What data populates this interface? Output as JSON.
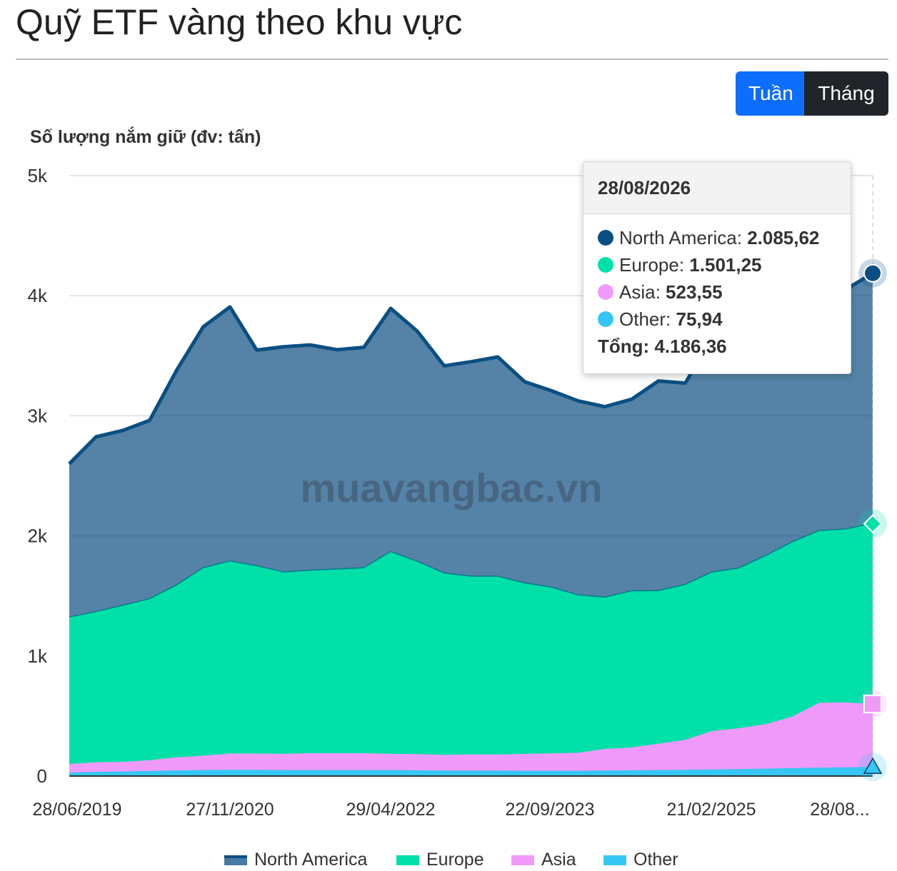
{
  "title": "Quỹ ETF vàng theo khu vực",
  "toggle": {
    "week_label": "Tuần",
    "month_label": "Tháng",
    "active": "Tuần",
    "active_color": "#0d6efd",
    "inactive_color": "#212529"
  },
  "watermark": "muavangbac.vn",
  "tooltip": {
    "date": "28/08/2026",
    "rows": [
      {
        "label": "North America",
        "value": "2.085,62",
        "color": "#0b4f82"
      },
      {
        "label": "Europe",
        "value": "1.501,25",
        "color": "#00e0a8"
      },
      {
        "label": "Asia",
        "value": "523,55",
        "color": "#ef9af9"
      },
      {
        "label": "Other",
        "value": "75,94",
        "color": "#35c6f3"
      }
    ],
    "total_label": "Tổng",
    "total_value": "4.186,36"
  },
  "chart_data": {
    "type": "area",
    "stacked": true,
    "title": "Quỹ ETF vàng theo khu vực",
    "ylabel": "Số lượng nắm giữ (đv: tấn)",
    "xlabel": "",
    "ylim": [
      0,
      5000
    ],
    "yticks": [
      0,
      1000,
      2000,
      3000,
      4000,
      5000
    ],
    "ytick_labels": [
      "0",
      "1k",
      "2k",
      "3k",
      "4k",
      "5k"
    ],
    "xtick_labels": [
      "28/06/2019",
      "27/11/2020",
      "29/04/2022",
      "22/09/2023",
      "21/02/2025",
      "28/08..."
    ],
    "grid": true,
    "legend": "bottom",
    "x": [
      "2019-06",
      "2019-09",
      "2019-12",
      "2020-03",
      "2020-06",
      "2020-09",
      "2020-11",
      "2021-02",
      "2021-05",
      "2021-08",
      "2021-11",
      "2022-02",
      "2022-04",
      "2022-07",
      "2022-10",
      "2023-01",
      "2023-04",
      "2023-07",
      "2023-09",
      "2023-12",
      "2024-03",
      "2024-06",
      "2024-09",
      "2024-12",
      "2025-02",
      "2025-05",
      "2025-08",
      "2025-11",
      "2026-02",
      "2026-05",
      "2026-08"
    ],
    "series": [
      {
        "name": "Other",
        "color": "#35c6f3",
        "values": [
          30,
          35,
          38,
          42,
          46,
          50,
          52,
          52,
          50,
          50,
          50,
          50,
          50,
          48,
          46,
          45,
          45,
          44,
          44,
          44,
          46,
          48,
          50,
          52,
          55,
          58,
          62,
          66,
          70,
          73,
          76
        ]
      },
      {
        "name": "Asia",
        "color": "#ef9af9",
        "values": [
          70,
          80,
          80,
          90,
          110,
          120,
          135,
          135,
          135,
          140,
          140,
          140,
          135,
          135,
          130,
          135,
          135,
          140,
          145,
          150,
          180,
          190,
          220,
          250,
          320,
          340,
          370,
          430,
          540,
          540,
          524
        ]
      },
      {
        "name": "Europe",
        "color": "#00e0a8",
        "values": [
          1220,
          1250,
          1300,
          1340,
          1430,
          1560,
          1600,
          1560,
          1510,
          1520,
          1530,
          1540,
          1680,
          1600,
          1510,
          1480,
          1480,
          1420,
          1380,
          1310,
          1260,
          1300,
          1270,
          1290,
          1320,
          1330,
          1400,
          1450,
          1430,
          1440,
          1501
        ]
      },
      {
        "name": "North America",
        "color": "#0b4f82",
        "values": [
          1280,
          1460,
          1460,
          1490,
          1790,
          2010,
          2120,
          1800,
          1880,
          1880,
          1830,
          1840,
          2030,
          1920,
          1730,
          1790,
          1830,
          1680,
          1640,
          1620,
          1590,
          1600,
          1750,
          1680,
          1950,
          2200,
          2240,
          2200,
          2100,
          2000,
          2086
        ]
      }
    ]
  }
}
